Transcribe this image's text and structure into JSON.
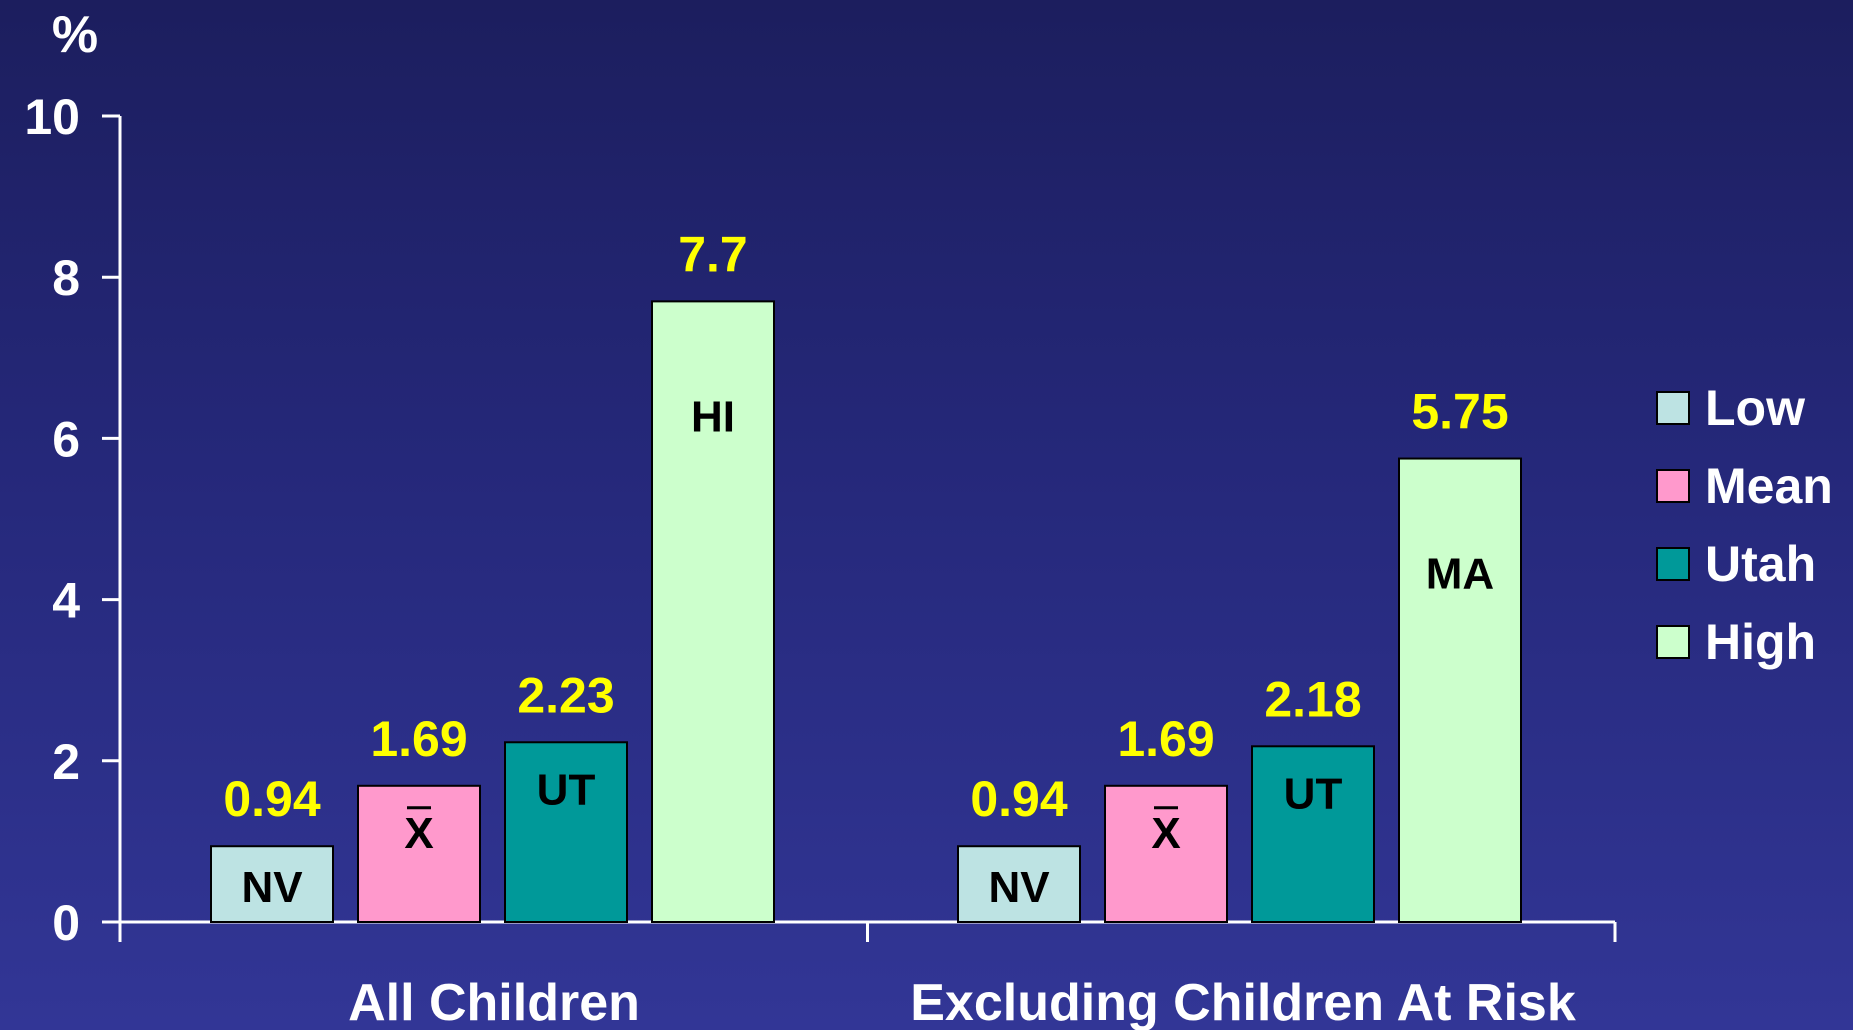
{
  "chart_data": {
    "type": "bar",
    "yunit_label": "%",
    "ylim": [
      0,
      10
    ],
    "yticks": [
      "0",
      "2",
      "4",
      "6",
      "8",
      "10"
    ],
    "categories": [
      "All Children",
      "Excluding Children At Risk"
    ],
    "series": [
      {
        "name": "Low",
        "color": "#bde3e3",
        "values": [
          0.94,
          0.94
        ],
        "bar_labels": [
          "NV",
          "NV"
        ]
      },
      {
        "name": "Mean",
        "color": "#ff99cc",
        "values": [
          1.69,
          1.69
        ],
        "bar_labels": [
          "X",
          "X"
        ]
      },
      {
        "name": "Utah",
        "color": "#009999",
        "values": [
          2.23,
          2.18
        ],
        "bar_labels": [
          "UT",
          "UT"
        ]
      },
      {
        "name": "High",
        "color": "#ccffcc",
        "values": [
          7.7,
          5.75
        ],
        "bar_labels": [
          "HI",
          "MA"
        ]
      }
    ],
    "value_labels": [
      [
        "0.94",
        "1.69",
        "2.23",
        "7.7"
      ],
      [
        "0.94",
        "1.69",
        "2.18",
        "5.75"
      ]
    ],
    "grid": false,
    "legend_position": "right",
    "colors": {
      "text": "#ffffff",
      "value_label": "#ffff00",
      "axis": "#ffffff",
      "bar_label": "#000000"
    }
  }
}
